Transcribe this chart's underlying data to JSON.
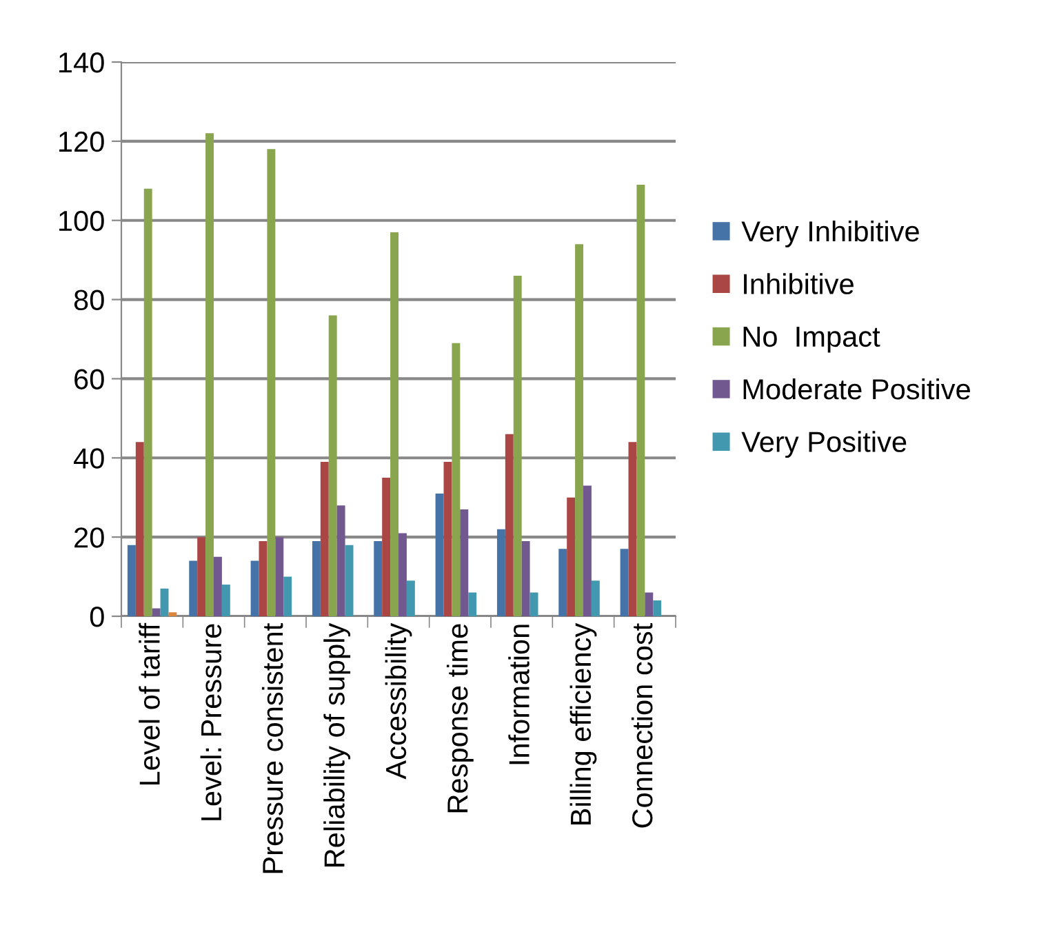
{
  "chart_data": {
    "type": "bar",
    "categories": [
      "Level of tariff",
      "Level: Pressure",
      "Pressure consistent",
      "Reliability of supply",
      "Accessibility",
      "Response time",
      "Information",
      "Billing efficiency",
      "Connection cost"
    ],
    "series": [
      {
        "name": "Very Inhibitive",
        "color": "#4572a7",
        "values": [
          18,
          14,
          14,
          19,
          19,
          31,
          22,
          17,
          17
        ]
      },
      {
        "name": "Inhibitive",
        "color": "#aa4643",
        "values": [
          44,
          20,
          19,
          39,
          35,
          39,
          46,
          30,
          44
        ]
      },
      {
        "name": "No  Impact",
        "color": "#89a54e",
        "values": [
          108,
          122,
          118,
          76,
          97,
          69,
          86,
          94,
          109
        ]
      },
      {
        "name": "Moderate Positive",
        "color": "#71588f",
        "values": [
          2,
          15,
          20,
          28,
          21,
          27,
          19,
          33,
          6
        ]
      },
      {
        "name": "Very Positive",
        "color": "#4198af",
        "values": [
          7,
          8,
          10,
          18,
          9,
          6,
          6,
          9,
          4
        ]
      },
      {
        "color": "#db843d",
        "values": [
          1,
          null,
          null,
          null,
          null,
          null,
          null,
          null,
          null
        ]
      }
    ],
    "ylim": [
      0,
      140
    ],
    "yticks": [
      0,
      20,
      40,
      60,
      80,
      100,
      120,
      140
    ],
    "grid": "y",
    "legend": "right"
  }
}
